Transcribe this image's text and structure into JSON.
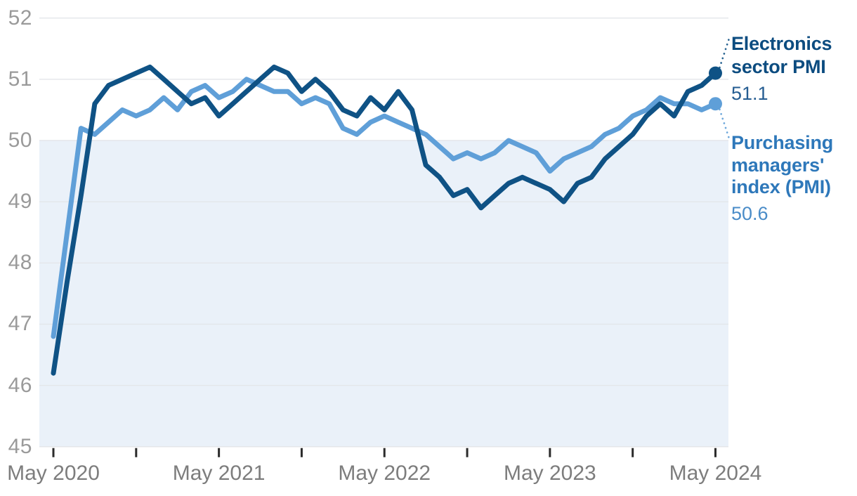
{
  "chart_data": {
    "type": "line",
    "frequency": "monthly",
    "x_months": [
      "May 2020",
      "Jun 2020",
      "Jul 2020",
      "Aug 2020",
      "Sep 2020",
      "Oct 2020",
      "Nov 2020",
      "Dec 2020",
      "Jan 2021",
      "Feb 2021",
      "Mar 2021",
      "Apr 2021",
      "May 2021",
      "Jun 2021",
      "Jul 2021",
      "Aug 2021",
      "Sep 2021",
      "Oct 2021",
      "Nov 2021",
      "Dec 2021",
      "Jan 2022",
      "Feb 2022",
      "Mar 2022",
      "Apr 2022",
      "May 2022",
      "Jun 2022",
      "Jul 2022",
      "Aug 2022",
      "Sep 2022",
      "Oct 2022",
      "Nov 2022",
      "Dec 2022",
      "Jan 2023",
      "Feb 2023",
      "Mar 2023",
      "Apr 2023",
      "May 2023",
      "Jun 2023",
      "Jul 2023",
      "Aug 2023",
      "Sep 2023",
      "Oct 2023",
      "Nov 2023",
      "Dec 2023",
      "Jan 2024",
      "Feb 2024",
      "Mar 2024",
      "Apr 2024",
      "May 2024"
    ],
    "series": [
      {
        "name": "Electronics sector PMI",
        "end_value_label": "51.1",
        "end_value": 51.1,
        "line_color": "#0F5285",
        "label_color": "#0C4C80",
        "value_color": "#255D92",
        "values": [
          46.2,
          47.7,
          49.1,
          50.6,
          50.9,
          51.0,
          51.1,
          51.2,
          51.0,
          50.8,
          50.6,
          50.7,
          50.4,
          50.6,
          50.8,
          51.0,
          51.2,
          51.1,
          50.8,
          51.0,
          50.8,
          50.5,
          50.4,
          50.7,
          50.5,
          50.8,
          50.5,
          49.6,
          49.4,
          49.1,
          49.2,
          48.9,
          49.1,
          49.3,
          49.4,
          49.3,
          49.2,
          49.0,
          49.3,
          49.4,
          49.7,
          49.9,
          50.1,
          50.4,
          50.6,
          50.4,
          50.8,
          50.9,
          51.1
        ]
      },
      {
        "name": "Purchasing managers' index (PMI)",
        "end_value_label": "50.6",
        "end_value": 50.6,
        "line_color": "#5F9FD8",
        "label_color": "#2E78BA",
        "value_color": "#4A8CC8",
        "values": [
          46.8,
          48.5,
          50.2,
          50.1,
          50.3,
          50.5,
          50.4,
          50.5,
          50.7,
          50.5,
          50.8,
          50.9,
          50.7,
          50.8,
          51.0,
          50.9,
          50.8,
          50.8,
          50.6,
          50.7,
          50.6,
          50.2,
          50.1,
          50.3,
          50.4,
          50.3,
          50.2,
          50.1,
          49.9,
          49.7,
          49.8,
          49.7,
          49.8,
          50.0,
          49.9,
          49.8,
          49.5,
          49.7,
          49.8,
          49.9,
          50.1,
          50.2,
          50.4,
          50.5,
          50.7,
          50.6,
          50.6,
          50.5,
          50.6
        ]
      }
    ],
    "x_axis": {
      "start": "May 2020",
      "end": "May 2024",
      "tick_labels": [
        "May 2020",
        "May 2021",
        "May 2022",
        "May 2023",
        "May 2024"
      ],
      "tick_month_indices": [
        0,
        6,
        12,
        18,
        24,
        30,
        36,
        42,
        48
      ],
      "label_month_indices": [
        0,
        12,
        24,
        36,
        48
      ]
    },
    "y_axis": {
      "ticks": [
        45,
        46,
        47,
        48,
        49,
        50,
        51,
        52
      ],
      "range": [
        45,
        52
      ]
    },
    "shaded_region": {
      "below_value": 50,
      "color": "#EAF1F9"
    },
    "style_colors": {
      "y_label": "#9A9A9A",
      "x_label": "#7D7D7D",
      "gridline": "#E3E6EA",
      "tick": "#2B2B2B"
    },
    "legend_position": "right-of-line-end",
    "grid": true
  }
}
